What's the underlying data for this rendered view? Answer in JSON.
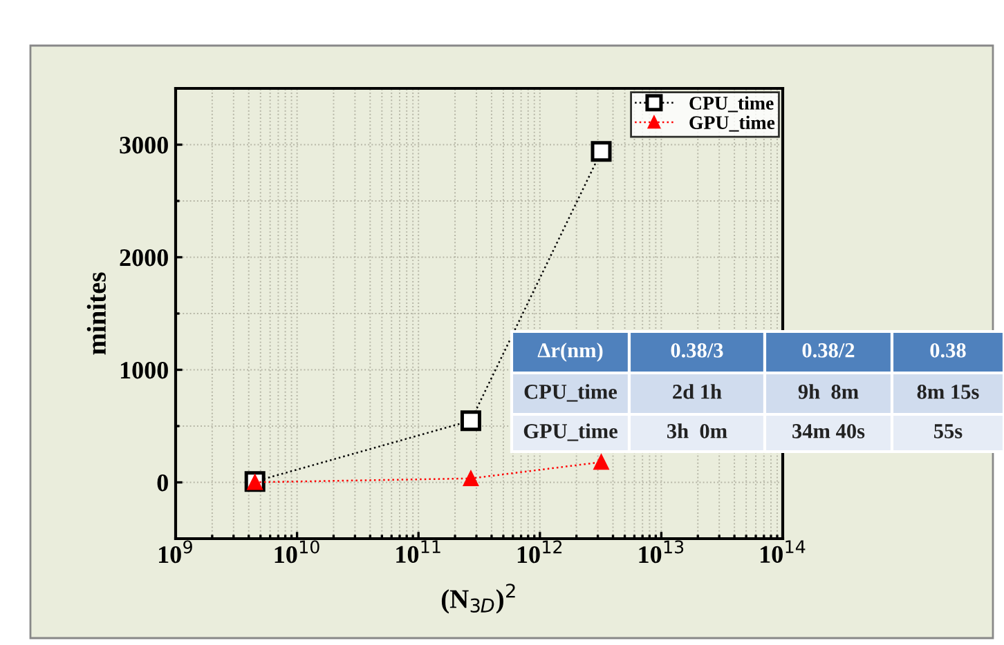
{
  "chart_data": {
    "type": "line",
    "x": [
      4500000000.0,
      270000000000.0,
      3200000000000.0
    ],
    "series": [
      {
        "name": "CPU_time",
        "color": "#000000",
        "values": [
          8,
          548,
          2940
        ],
        "marker": "square"
      },
      {
        "name": "GPU_time",
        "color": "#ff0000",
        "values": [
          1,
          35,
          180
        ],
        "marker": "triangle"
      }
    ],
    "xlabel": "(N$_{3D}$)$^{2}$",
    "ylabel": "minites",
    "log": "x",
    "xlim": [
      1000000000.0,
      100000000000000.0
    ],
    "xticks": [
      {
        "value": 1000000000.0,
        "label": "10$^{9}$"
      },
      {
        "value": 10000000000.0,
        "label": "10$^{10}$"
      },
      {
        "value": 100000000000.0,
        "label": "10$^{11}$"
      },
      {
        "value": 1000000000000.0,
        "label": "10$^{12}$"
      },
      {
        "value": 10000000000000.0,
        "label": "10$^{13}$"
      },
      {
        "value": 100000000000000.0,
        "label": "10$^{14}$"
      }
    ],
    "ylim": [
      -500,
      3500
    ],
    "yticks": [
      0,
      1000,
      2000,
      3000
    ],
    "grid": true,
    "legend": "top right",
    "line_style": "dotted",
    "annotations": [
      "Δr(nm)",
      "0.38/3",
      "0.38/2",
      "0.38",
      "CPU_time",
      "2d 1h",
      "9h  8m",
      "8m 15s",
      "GPU_time",
      "3h  0m",
      "34m 40s",
      "55s"
    ]
  }
}
